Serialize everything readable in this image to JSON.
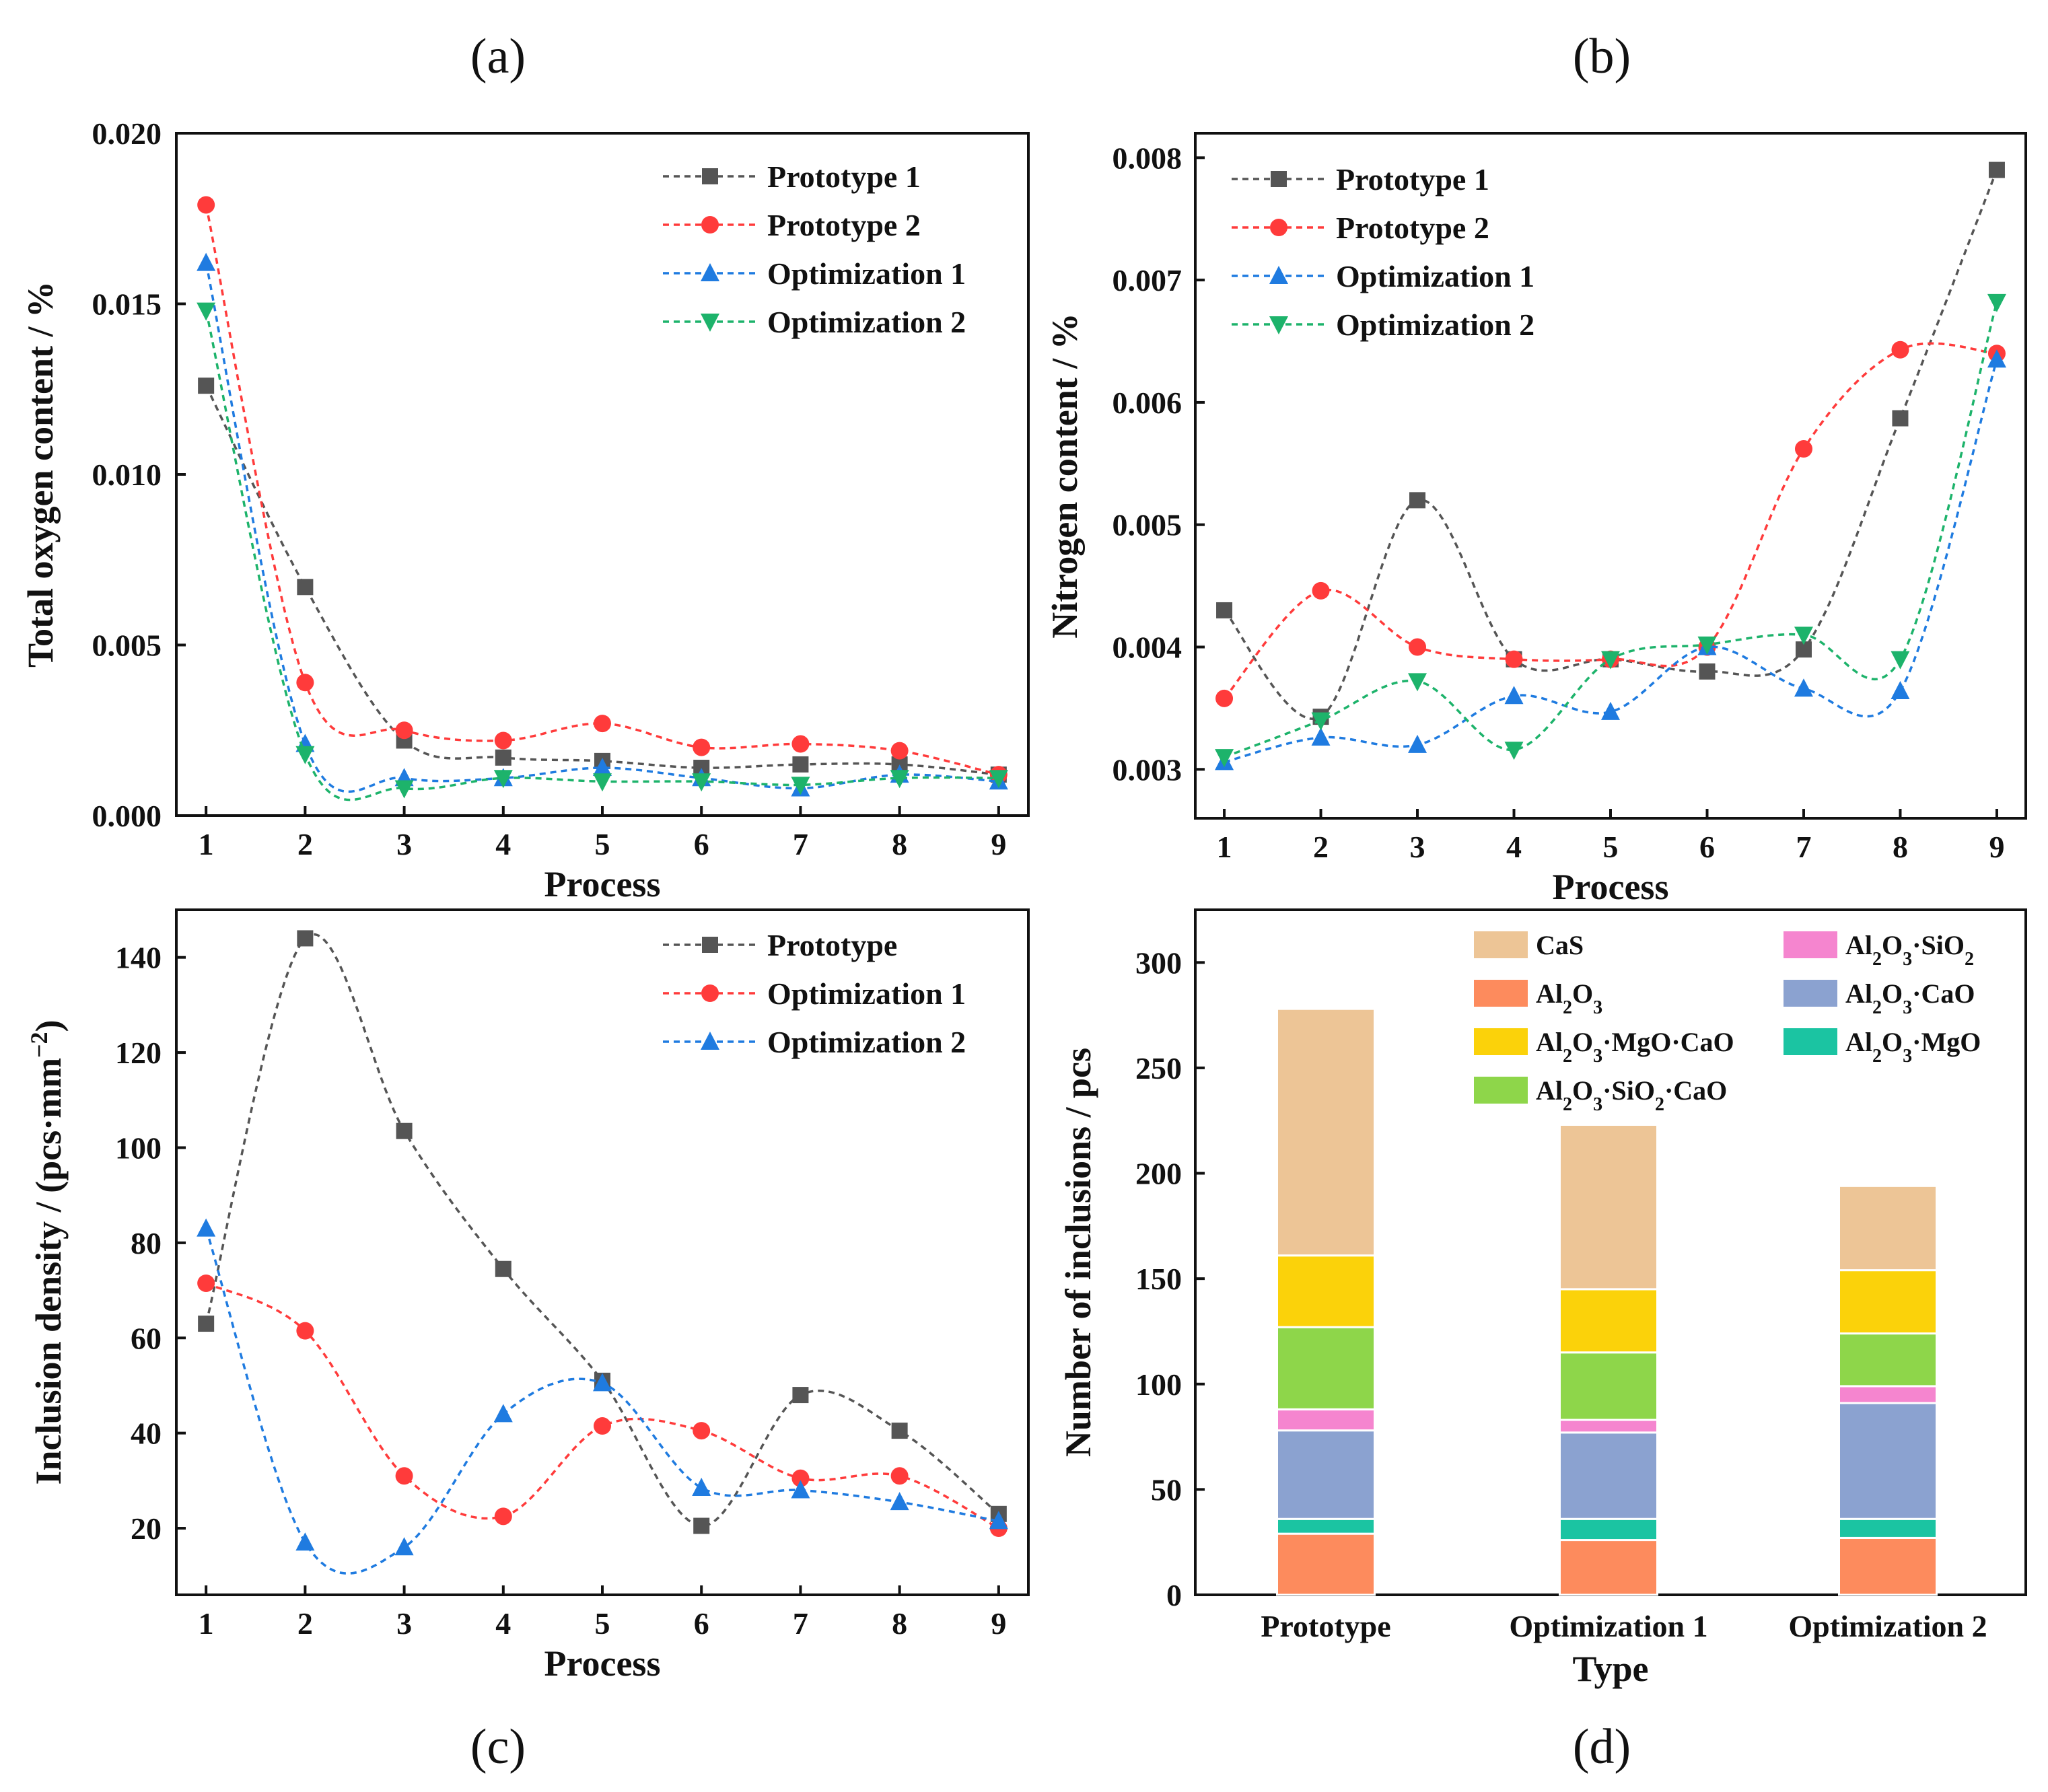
{
  "chart_data": [
    {
      "id": "a",
      "panel_label": "(a)",
      "type": "line",
      "xlabel": "Process",
      "ylabel": "Total oxygen content / %",
      "xlim": [
        0.7,
        9.3
      ],
      "ylim": [
        0,
        0.02
      ],
      "x_ticks": [
        "1",
        "2",
        "3",
        "4",
        "5",
        "6",
        "7",
        "8",
        "9"
      ],
      "y_ticks": [
        "0.000",
        "0.005",
        "0.010",
        "0.015",
        "0.020"
      ],
      "legend_position": "top-right",
      "x": [
        1,
        2,
        3,
        4,
        5,
        6,
        7,
        8,
        9
      ],
      "series": [
        {
          "name": "Prototype 1",
          "color": "#555555",
          "marker": "square",
          "values": [
            0.0126,
            0.0067,
            0.0022,
            0.0017,
            0.0016,
            0.0014,
            0.0015,
            0.0015,
            0.0012
          ]
        },
        {
          "name": "Prototype 2",
          "color": "#ff3b3b",
          "marker": "circle",
          "values": [
            0.0179,
            0.0039,
            0.0025,
            0.0022,
            0.0027,
            0.002,
            0.0021,
            0.0019,
            0.0012
          ]
        },
        {
          "name": "Optimization 1",
          "color": "#1f7be0",
          "marker": "triangle",
          "values": [
            0.0162,
            0.0021,
            0.0011,
            0.0011,
            0.0014,
            0.0011,
            0.0008,
            0.0012,
            0.001
          ]
        },
        {
          "name": "Optimization 2",
          "color": "#1db36b",
          "marker": "triangle-down",
          "values": [
            0.0148,
            0.0018,
            0.0008,
            0.0011,
            0.001,
            0.001,
            0.0009,
            0.0011,
            0.0011
          ]
        }
      ]
    },
    {
      "id": "b",
      "panel_label": "(b)",
      "type": "line",
      "xlabel": "Process",
      "ylabel": "Nitrogen content / %",
      "xlim": [
        0.7,
        9.3
      ],
      "ylim": [
        0.0026,
        0.0082
      ],
      "x_ticks": [
        "1",
        "2",
        "3",
        "4",
        "5",
        "6",
        "7",
        "8",
        "9"
      ],
      "y_ticks": [
        "0.003",
        "0.004",
        "0.005",
        "0.006",
        "0.007",
        "0.008"
      ],
      "legend_position": "top-left",
      "x": [
        1,
        2,
        3,
        4,
        5,
        6,
        7,
        8,
        9
      ],
      "series": [
        {
          "name": "Prototype 1",
          "color": "#555555",
          "marker": "square",
          "values": [
            0.0043,
            0.00343,
            0.0052,
            0.0039,
            0.0039,
            0.0038,
            0.00398,
            0.00587,
            0.0079
          ]
        },
        {
          "name": "Prototype 2",
          "color": "#ff3b3b",
          "marker": "circle",
          "values": [
            0.00358,
            0.00446,
            0.004,
            0.0039,
            0.0039,
            0.004,
            0.00562,
            0.00643,
            0.0064
          ]
        },
        {
          "name": "Optimization 1",
          "color": "#1f7be0",
          "marker": "triangle",
          "values": [
            0.00306,
            0.00326,
            0.0032,
            0.0036,
            0.00347,
            0.004,
            0.00366,
            0.00364,
            0.00635
          ]
        },
        {
          "name": "Optimization 2",
          "color": "#1db36b",
          "marker": "triangle-down",
          "values": [
            0.0031,
            0.0034,
            0.00372,
            0.00316,
            0.0039,
            0.00402,
            0.0041,
            0.0039,
            0.00682
          ]
        }
      ]
    },
    {
      "id": "c",
      "panel_label": "(c)",
      "type": "line",
      "xlabel": "Process",
      "ylabel": "Inclusion density / (pcs·mm",
      "ylabel_sup": "−2",
      "ylabel_tail": ")",
      "xlim": [
        0.7,
        9.3
      ],
      "ylim": [
        6,
        150
      ],
      "x_ticks": [
        "1",
        "2",
        "3",
        "4",
        "5",
        "6",
        "7",
        "8",
        "9"
      ],
      "y_ticks": [
        "20",
        "40",
        "60",
        "80",
        "100",
        "120",
        "140"
      ],
      "legend_position": "top-right",
      "x": [
        1,
        2,
        3,
        4,
        5,
        6,
        7,
        8,
        9
      ],
      "series": [
        {
          "name": "Prototype",
          "color": "#555555",
          "marker": "square",
          "values": [
            63,
            144,
            103.5,
            74.5,
            51,
            20.5,
            48,
            40.5,
            23
          ]
        },
        {
          "name": "Optimization 1",
          "color": "#ff3b3b",
          "marker": "circle",
          "values": [
            71.5,
            61.5,
            31,
            22.5,
            41.5,
            40.5,
            30.5,
            31,
            20
          ]
        },
        {
          "name": "Optimization 2",
          "color": "#1f7be0",
          "marker": "triangle",
          "values": [
            83,
            17,
            16,
            44,
            50.5,
            28.5,
            28,
            25.5,
            21.5
          ]
        }
      ]
    },
    {
      "id": "d",
      "panel_label": "(d)",
      "type": "bar",
      "stacked": true,
      "xlabel": "Type",
      "ylabel": "Number of inclusions / pcs",
      "ylim": [
        0,
        325
      ],
      "y_ticks": [
        "0",
        "50",
        "100",
        "150",
        "200",
        "250",
        "300"
      ],
      "categories": [
        "Prototype",
        "Optimization 1",
        "Optimization 2"
      ],
      "legend_position": "top",
      "series": [
        {
          "name": "Al2O3",
          "color": "#fd8b5d",
          "values": [
            29,
            26,
            27
          ]
        },
        {
          "name": "Al2O3·MgO",
          "color": "#1bc4a2",
          "values": [
            7,
            10,
            9
          ]
        },
        {
          "name": "Al2O3·CaO",
          "color": "#8ba2d0",
          "values": [
            42,
            41,
            55
          ]
        },
        {
          "name": "Al2O3·SiO2",
          "color": "#f585cf",
          "values": [
            10,
            6,
            8
          ]
        },
        {
          "name": "Al2O3·SiO2·CaO",
          "color": "#8ed64a",
          "values": [
            39,
            32,
            25
          ]
        },
        {
          "name": "Al2O3·MgO·CaO",
          "color": "#fbd20a",
          "values": [
            34,
            30,
            30
          ]
        },
        {
          "name": "CaS",
          "color": "#edc596",
          "values": [
            117,
            78,
            40
          ]
        }
      ],
      "legend_labels": [
        {
          "key": "CaS",
          "parts": [
            "CaS"
          ]
        },
        {
          "key": "Al2O3·SiO2",
          "parts": [
            "Al",
            "2",
            "O",
            "3",
            "·SiO",
            "2"
          ]
        },
        {
          "key": "Al2O3",
          "parts": [
            "Al",
            "2",
            "O",
            "3"
          ]
        },
        {
          "key": "Al2O3·CaO",
          "parts": [
            "Al",
            "2",
            "O",
            "3",
            "·CaO"
          ]
        },
        {
          "key": "Al2O3·MgO·CaO",
          "parts": [
            "Al",
            "2",
            "O",
            "3",
            "·MgO·CaO"
          ]
        },
        {
          "key": "Al2O3·MgO",
          "parts": [
            "Al",
            "2",
            "O",
            "3",
            "·MgO"
          ]
        },
        {
          "key": "Al2O3·SiO2·CaO",
          "parts": [
            "Al",
            "2",
            "O",
            "3",
            "·SiO",
            "2",
            "·CaO"
          ]
        }
      ]
    }
  ]
}
